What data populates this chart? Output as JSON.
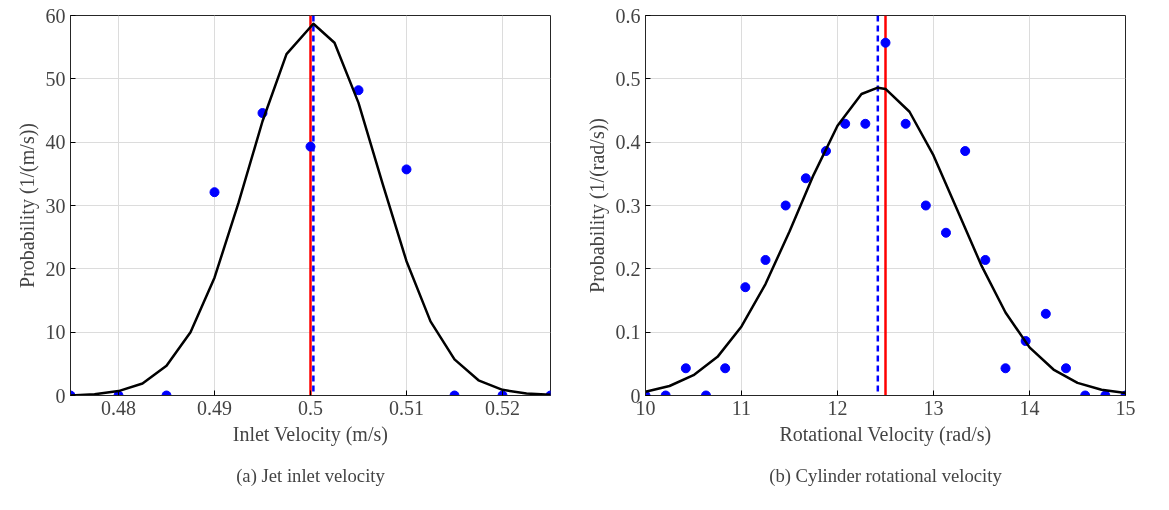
{
  "chart_data": [
    {
      "type": "scatter",
      "xlabel": "Inlet Velocity (m/s)",
      "ylabel": "Probability (1/(m/s))",
      "xlim": [
        0.475,
        0.525
      ],
      "ylim": [
        0,
        60
      ],
      "xticks": [
        0.48,
        0.49,
        0.5,
        0.51,
        0.52
      ],
      "yticks": [
        0,
        10,
        20,
        30,
        40,
        50,
        60
      ],
      "grid": true,
      "annotations": [
        "(a) Jet inlet velocity"
      ],
      "series": [
        {
          "marker": "circle",
          "color": "#0000ff",
          "x": [
            0.475,
            0.48,
            0.485,
            0.49,
            0.495,
            0.5,
            0.505,
            0.51,
            0.515,
            0.52,
            0.525
          ],
          "values": [
            0,
            0,
            0,
            32.1,
            44.6,
            39.3,
            48.2,
            35.7,
            0,
            0,
            0
          ]
        },
        {
          "type": "line",
          "marker": "none",
          "color": "#000000",
          "x": [
            0.475,
            0.4775,
            0.48,
            0.4825,
            0.485,
            0.4875,
            0.49,
            0.4925,
            0.495,
            0.4975,
            0.5003,
            0.5025,
            0.505,
            0.5075,
            0.51,
            0.5125,
            0.515,
            0.5175,
            0.52,
            0.5225,
            0.525
          ],
          "values": [
            0,
            0.2,
            0.7,
            1.9,
            4.7,
            10,
            18.6,
            30.4,
            43.3,
            53.9,
            58.7,
            55.7,
            46.2,
            33.5,
            21.2,
            11.7,
            5.7,
            2.4,
            0.9,
            0.3,
            0.1
          ]
        }
      ],
      "ref_lines": [
        {
          "axis": "x",
          "value": 0.5,
          "color": "#ff0000",
          "line_style": "solid"
        },
        {
          "axis": "x",
          "value": 0.5003,
          "color": "#0000ff",
          "line_style": "dashed"
        }
      ]
    },
    {
      "type": "scatter",
      "xlabel": "Rotational Velocity (rad/s)",
      "ylabel": "Probability (1/(rad/s))",
      "xlim": [
        10,
        15
      ],
      "ylim": [
        0,
        0.6
      ],
      "xticks": [
        10,
        11,
        12,
        13,
        14,
        15
      ],
      "yticks": [
        0,
        0.1,
        0.2,
        0.3,
        0.4,
        0.5,
        0.6
      ],
      "grid": true,
      "annotations": [
        "(b) Cylinder rotational velocity"
      ],
      "series": [
        {
          "marker": "circle",
          "color": "#0000ff",
          "x": [
            10,
            10.21,
            10.42,
            10.63,
            10.83,
            11.04,
            11.25,
            11.46,
            11.67,
            11.88,
            12.08,
            12.29,
            12.5,
            12.71,
            12.92,
            13.13,
            13.33,
            13.54,
            13.75,
            13.96,
            14.17,
            14.38,
            14.58,
            14.79,
            15
          ],
          "values": [
            0,
            0,
            0.043,
            0,
            0.043,
            0.171,
            0.214,
            0.3,
            0.343,
            0.386,
            0.429,
            0.429,
            0.557,
            0.429,
            0.3,
            0.257,
            0.386,
            0.214,
            0.043,
            0.086,
            0.129,
            0.043,
            0,
            0,
            0
          ]
        },
        {
          "type": "line",
          "marker": "none",
          "color": "#000000",
          "x": [
            10,
            10.25,
            10.5,
            10.75,
            11,
            11.25,
            11.5,
            11.75,
            12,
            12.25,
            12.42,
            12.5,
            12.75,
            13,
            13.25,
            13.5,
            13.75,
            14,
            14.25,
            14.5,
            14.75,
            15
          ],
          "values": [
            0.006,
            0.015,
            0.032,
            0.061,
            0.109,
            0.176,
            0.259,
            0.348,
            0.426,
            0.476,
            0.486,
            0.484,
            0.448,
            0.379,
            0.292,
            0.205,
            0.131,
            0.076,
            0.041,
            0.02,
            0.009,
            0.004
          ]
        }
      ],
      "ref_lines": [
        {
          "axis": "x",
          "value": 12.42,
          "color": "#0000ff",
          "line_style": "dashed"
        },
        {
          "axis": "x",
          "value": 12.5,
          "color": "#ff0000",
          "line_style": "solid"
        }
      ]
    }
  ]
}
